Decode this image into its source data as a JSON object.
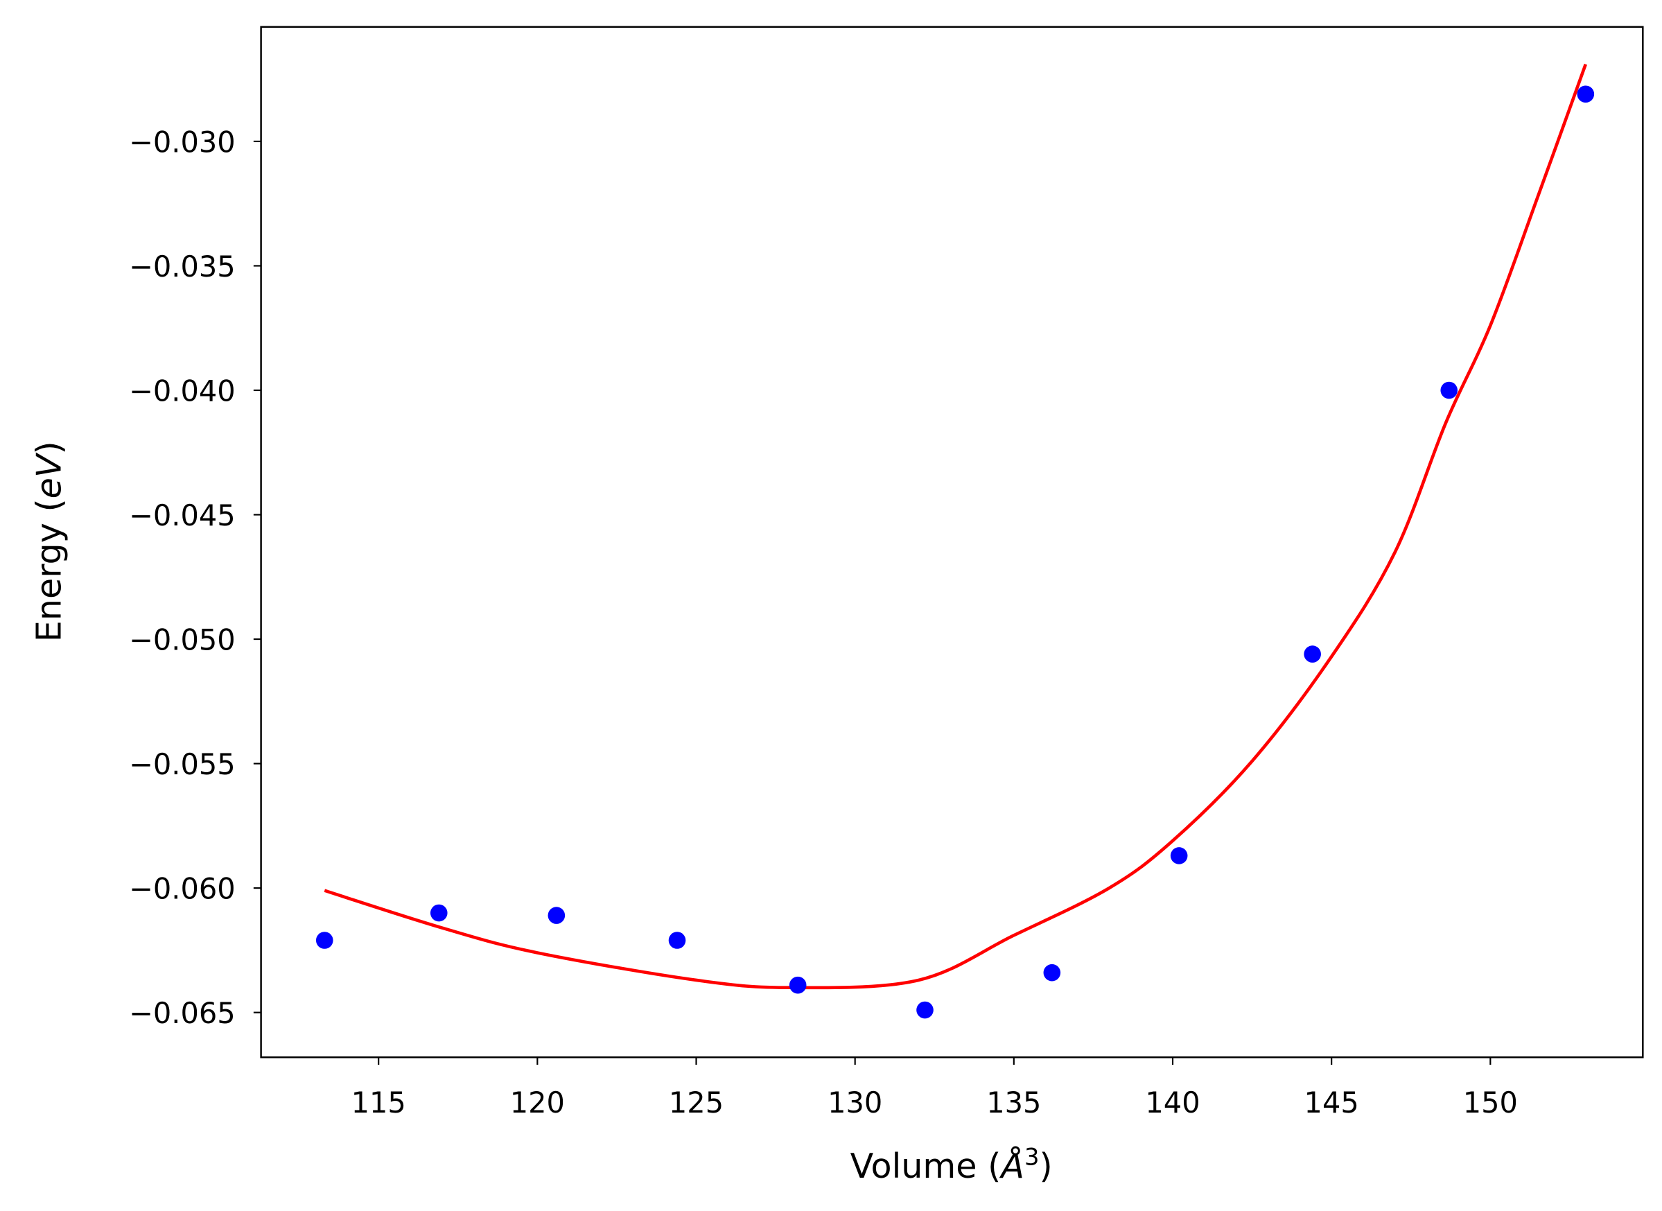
{
  "chart_data": {
    "type": "scatter",
    "title": "",
    "xlabel": "Volume (Å³)",
    "xlabel_parts": {
      "main": "Volume (",
      "unit": "Å",
      "sup": "3",
      "close": ")"
    },
    "ylabel": "Energy (eV)",
    "ylabel_parts": {
      "main": "Energy (",
      "unit": "eV",
      "close": ")"
    },
    "xlim": [
      111.3,
      154.8
    ],
    "ylim": [
      -0.0668,
      -0.0254
    ],
    "xticks": [
      115,
      120,
      125,
      130,
      135,
      140,
      145,
      150
    ],
    "xtick_labels": [
      "115",
      "120",
      "125",
      "130",
      "135",
      "140",
      "145",
      "150"
    ],
    "yticks": [
      -0.03,
      -0.035,
      -0.04,
      -0.045,
      -0.05,
      -0.055,
      -0.06,
      -0.065
    ],
    "ytick_labels": [
      "−0.030",
      "−0.035",
      "−0.040",
      "−0.045",
      "−0.050",
      "−0.055",
      "−0.060",
      "−0.065"
    ],
    "grid": false,
    "series": [
      {
        "kind": "scatter",
        "color": "#0000ff",
        "x": [
          113.3,
          116.9,
          120.6,
          124.4,
          128.2,
          132.2,
          136.2,
          140.2,
          144.4,
          148.7,
          153.0
        ],
        "y": [
          -0.0621,
          -0.061,
          -0.0611,
          -0.0621,
          -0.0639,
          -0.0649,
          -0.0634,
          -0.0587,
          -0.0506,
          -0.04,
          -0.0281
        ]
      },
      {
        "kind": "line",
        "color": "#ff0000",
        "x": [
          113.3,
          117,
          120,
          125,
          128,
          132,
          135,
          138,
          140,
          142.5,
          145,
          147,
          148.6,
          150,
          151.5,
          153.0
        ],
        "y": [
          -0.0601,
          -0.0616,
          -0.0626,
          -0.0637,
          -0.064,
          -0.0637,
          -0.0619,
          -0.06,
          -0.0581,
          -0.0549,
          -0.0507,
          -0.0465,
          -0.0413,
          -0.0374,
          -0.0322,
          -0.0269
        ]
      }
    ]
  }
}
